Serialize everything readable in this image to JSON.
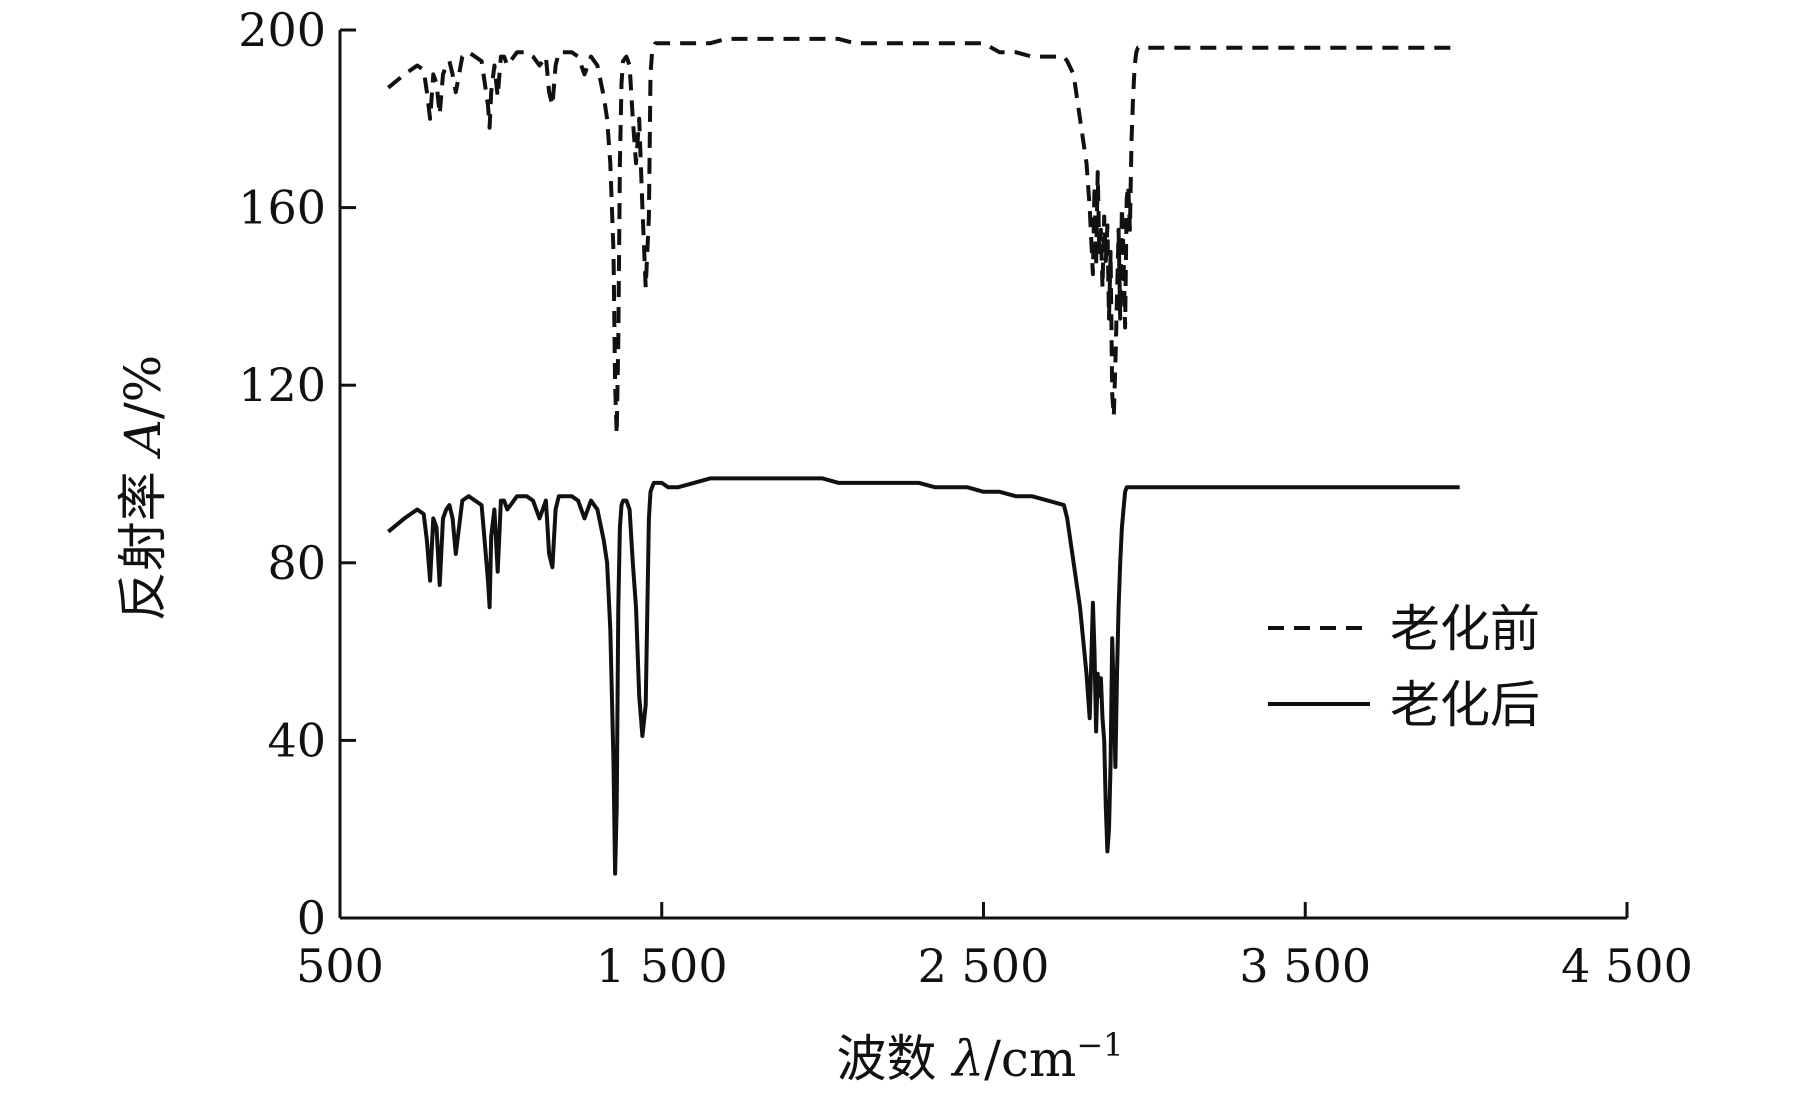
{
  "chart_data": {
    "type": "line",
    "xlabel_prefix": "波数 ",
    "xlabel_symbol": "λ",
    "xlabel_unit": "/cm",
    "xlabel_exp": "−1",
    "ylabel_prefix": "反射率 ",
    "ylabel_symbol": "A",
    "ylabel_unit": "/%",
    "xlim": [
      500,
      4500
    ],
    "ylim": [
      0,
      200
    ],
    "xticks": [
      {
        "value": 500,
        "label": "500"
      },
      {
        "value": 1500,
        "label": "1 500"
      },
      {
        "value": 2500,
        "label": "2 500"
      },
      {
        "value": 3500,
        "label": "3 500"
      },
      {
        "value": 4500,
        "label": "4 500"
      }
    ],
    "yticks": [
      {
        "value": 0,
        "label": "0"
      },
      {
        "value": 40,
        "label": "40"
      },
      {
        "value": 80,
        "label": "80"
      },
      {
        "value": 120,
        "label": "120"
      },
      {
        "value": 160,
        "label": "160"
      },
      {
        "value": 200,
        "label": "200"
      }
    ],
    "grid": false,
    "legend_position": "right",
    "series": [
      {
        "name": "老化前",
        "style": "dashed",
        "color": "#111111",
        "x": [
          650,
          700,
          740,
          760,
          770,
          780,
          790,
          800,
          810,
          820,
          830,
          840,
          850,
          860,
          880,
          900,
          920,
          940,
          960,
          965,
          970,
          980,
          990,
          1000,
          1010,
          1020,
          1050,
          1080,
          1100,
          1120,
          1140,
          1150,
          1160,
          1170,
          1180,
          1200,
          1220,
          1240,
          1260,
          1280,
          1300,
          1320,
          1330,
          1340,
          1350,
          1355,
          1360,
          1365,
          1370,
          1375,
          1380,
          1390,
          1400,
          1410,
          1420,
          1430,
          1440,
          1450,
          1460,
          1465,
          1470,
          1475,
          1480,
          1490,
          1500,
          1520,
          1550,
          1600,
          1650,
          1700,
          1750,
          1800,
          1850,
          1900,
          1950,
          2000,
          2050,
          2100,
          2150,
          2200,
          2250,
          2300,
          2350,
          2400,
          2450,
          2500,
          2550,
          2600,
          2650,
          2700,
          2750,
          2760,
          2780,
          2800,
          2820,
          2830,
          2840,
          2845,
          2850,
          2855,
          2860,
          2865,
          2870,
          2875,
          2880,
          2885,
          2890,
          2895,
          2900,
          2905,
          2910,
          2915,
          2920,
          2925,
          2930,
          2935,
          2940,
          2945,
          2950,
          2955,
          2960,
          2965,
          2970,
          2975,
          2980,
          2990,
          3000,
          3020,
          3050,
          3100,
          3150,
          3200,
          3250,
          3300,
          3400,
          3500,
          3600,
          3700,
          3800,
          3900,
          3980
        ],
        "y": [
          187,
          190,
          192,
          191,
          186,
          180,
          190,
          188,
          181,
          190,
          192,
          193,
          190,
          186,
          194,
          195,
          194,
          193,
          183,
          178,
          186,
          192,
          185,
          194,
          194,
          192,
          195,
          195,
          194,
          192,
          194,
          186,
          183,
          192,
          195,
          195,
          195,
          194,
          190,
          194,
          192,
          185,
          180,
          170,
          150,
          120,
          109,
          130,
          170,
          188,
          193,
          194,
          192,
          180,
          170,
          180,
          160,
          142,
          158,
          190,
          195,
          196,
          197,
          197,
          197,
          197,
          197,
          197,
          197,
          198,
          198,
          198,
          198,
          198,
          198,
          198,
          198,
          197,
          197,
          197,
          197,
          197,
          197,
          197,
          197,
          197,
          195,
          195,
          194,
          194,
          194,
          193,
          190,
          180,
          170,
          160,
          145,
          165,
          147,
          168,
          150,
          155,
          142,
          158,
          148,
          156,
          135,
          150,
          118,
          113,
          125,
          140,
          155,
          135,
          160,
          150,
          133,
          162,
          165,
          155,
          175,
          185,
          192,
          195,
          196,
          196,
          196,
          196,
          196,
          196,
          196,
          196,
          196,
          196,
          196,
          196,
          196,
          196,
          196,
          196,
          196
        ]
      },
      {
        "name": "老化后",
        "style": "solid",
        "color": "#111111",
        "x": [
          650,
          700,
          740,
          760,
          770,
          780,
          790,
          800,
          810,
          820,
          830,
          840,
          850,
          860,
          880,
          900,
          920,
          940,
          960,
          965,
          970,
          980,
          990,
          1000,
          1010,
          1020,
          1050,
          1080,
          1100,
          1120,
          1140,
          1150,
          1160,
          1170,
          1180,
          1200,
          1220,
          1240,
          1260,
          1280,
          1300,
          1320,
          1330,
          1340,
          1350,
          1355,
          1360,
          1365,
          1370,
          1375,
          1380,
          1390,
          1400,
          1410,
          1420,
          1430,
          1440,
          1450,
          1460,
          1465,
          1470,
          1475,
          1480,
          1490,
          1500,
          1520,
          1550,
          1600,
          1650,
          1700,
          1750,
          1800,
          1850,
          1900,
          1950,
          2000,
          2050,
          2100,
          2150,
          2200,
          2250,
          2300,
          2350,
          2400,
          2450,
          2500,
          2550,
          2600,
          2650,
          2700,
          2750,
          2760,
          2780,
          2800,
          2820,
          2830,
          2840,
          2845,
          2850,
          2855,
          2860,
          2865,
          2870,
          2875,
          2880,
          2885,
          2890,
          2895,
          2900,
          2905,
          2910,
          2915,
          2920,
          2925,
          2930,
          2935,
          2940,
          2945,
          2950,
          2955,
          2960,
          2965,
          2970,
          2975,
          2980,
          2990,
          3000,
          3020,
          3050,
          3100,
          3150,
          3200,
          3250,
          3300,
          3400,
          3500,
          3600,
          3700,
          3800,
          3900,
          3980
        ],
        "y": [
          87,
          90,
          92,
          91,
          85,
          76,
          90,
          88,
          75,
          90,
          92,
          93,
          90,
          82,
          94,
          95,
          94,
          93,
          76,
          70,
          86,
          92,
          78,
          94,
          94,
          92,
          95,
          95,
          94,
          90,
          94,
          82,
          79,
          92,
          95,
          95,
          95,
          94,
          90,
          94,
          92,
          85,
          80,
          65,
          35,
          10,
          25,
          70,
          88,
          93,
          94,
          94,
          92,
          80,
          70,
          50,
          41,
          48,
          90,
          96,
          97,
          98,
          98,
          98,
          98,
          97,
          97,
          98,
          99,
          99,
          99,
          99,
          99,
          99,
          99,
          99,
          98,
          98,
          98,
          98,
          98,
          98,
          97,
          97,
          97,
          96,
          96,
          95,
          95,
          94,
          93,
          90,
          80,
          70,
          55,
          45,
          71,
          60,
          42,
          55,
          50,
          54,
          45,
          40,
          25,
          15,
          20,
          35,
          63,
          50,
          34,
          55,
          70,
          80,
          88,
          92,
          96,
          97,
          97,
          97,
          97,
          97,
          97,
          97,
          97,
          97,
          97,
          97,
          97,
          97,
          97,
          97,
          97,
          97,
          97,
          97,
          97,
          97,
          97,
          97,
          97
        ]
      }
    ]
  }
}
